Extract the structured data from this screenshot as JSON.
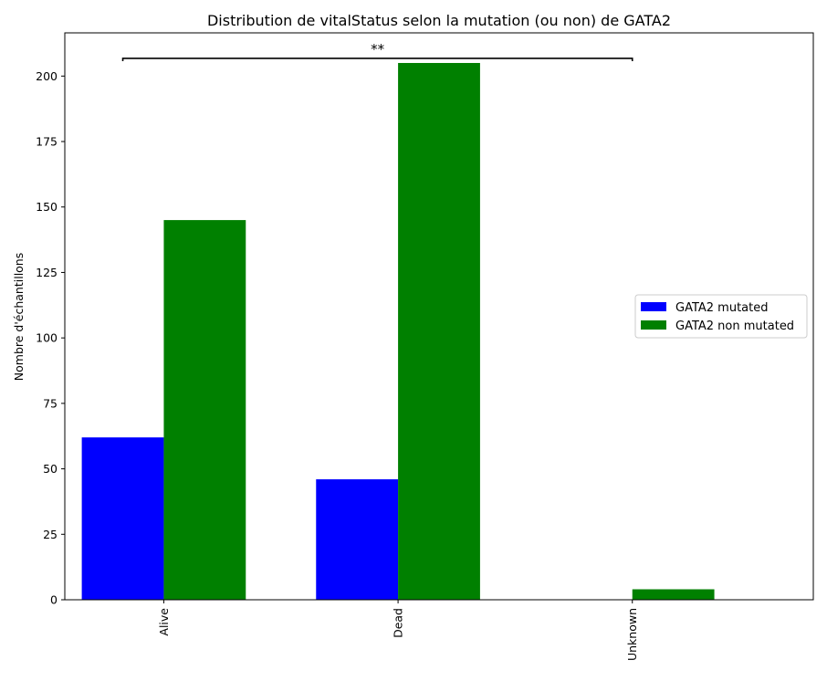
{
  "chart_data": {
    "type": "bar",
    "title": "Distribution de vitalStatus selon la mutation (ou non) de GATA2",
    "xlabel": "",
    "ylabel": "Nombre d'échantillons",
    "categories": [
      "Alive",
      "Dead",
      "Unknown"
    ],
    "series": [
      {
        "name": "GATA2 mutated",
        "values": [
          62,
          46,
          0
        ],
        "color": "#0000ff"
      },
      {
        "name": "GATA2 non mutated",
        "values": [
          145,
          205,
          4
        ],
        "color": "#008000"
      }
    ],
    "ylim": [
      0,
      216.5
    ],
    "yticks": [
      0,
      25,
      50,
      75,
      100,
      125,
      150,
      175,
      200
    ],
    "grid": false,
    "legend_position": "center-right",
    "annotation": {
      "text": "**",
      "from_category": "Alive",
      "to_category": "Unknown"
    }
  }
}
